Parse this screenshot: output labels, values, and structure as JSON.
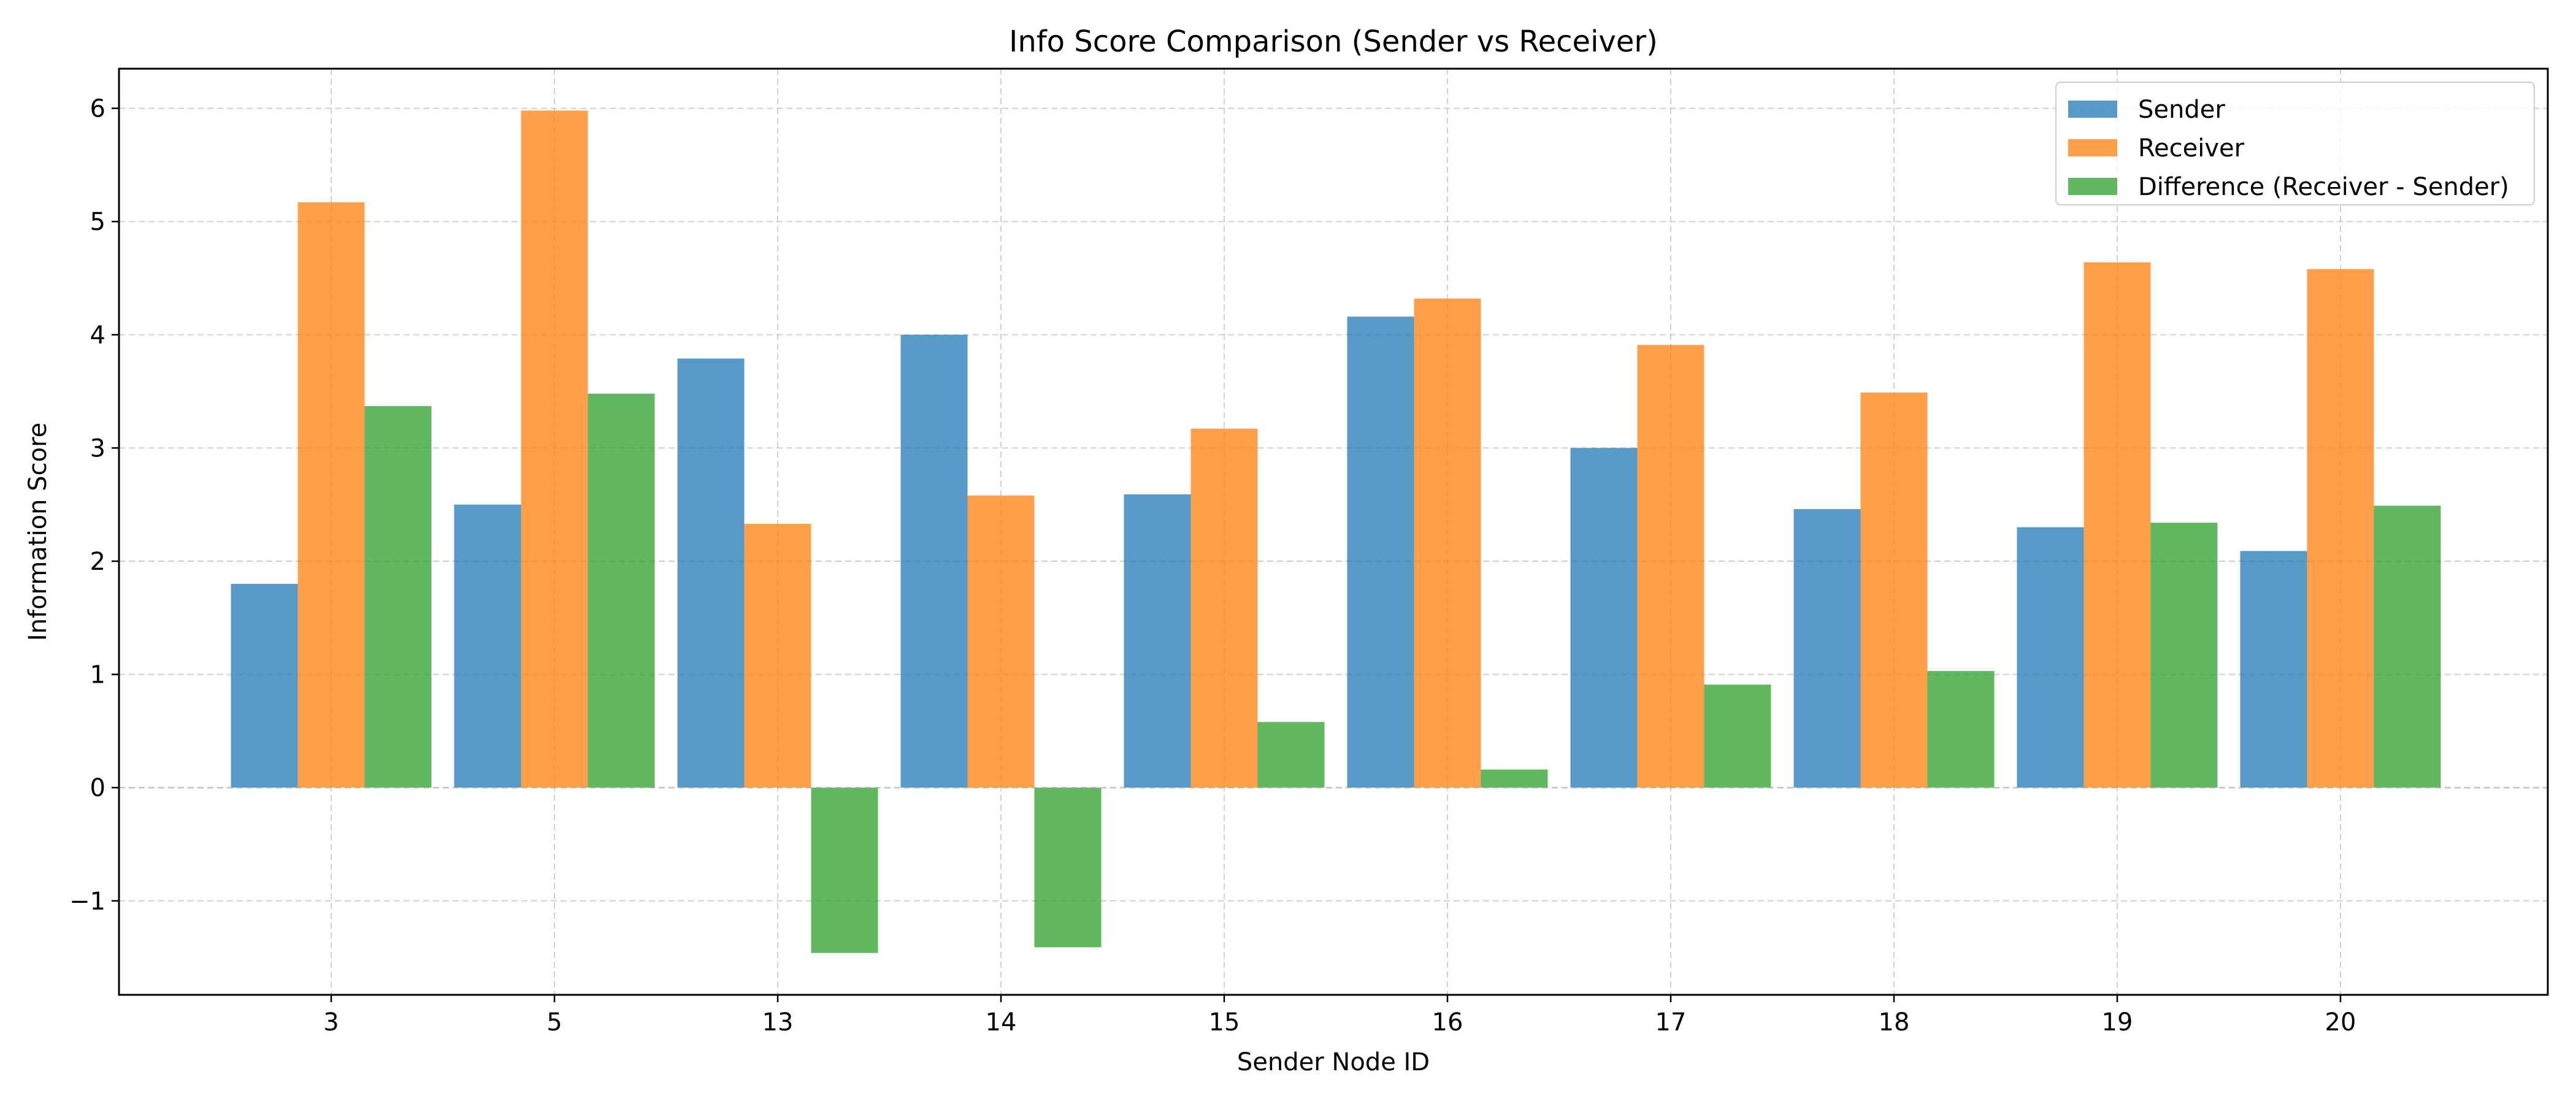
{
  "chart_data": {
    "type": "bar",
    "title": "Info Score Comparison (Sender vs Receiver)",
    "xlabel": "Sender Node ID",
    "ylabel": "Information Score",
    "categories": [
      "3",
      "5",
      "13",
      "14",
      "15",
      "16",
      "17",
      "18",
      "19",
      "20"
    ],
    "series": [
      {
        "name": "Sender",
        "color": "#1f77b4",
        "values": [
          1.8,
          2.5,
          3.79,
          4.0,
          2.59,
          4.16,
          3.0,
          2.46,
          2.3,
          2.09
        ]
      },
      {
        "name": "Receiver",
        "color": "#ff7f0e",
        "values": [
          5.17,
          5.98,
          2.33,
          2.58,
          3.17,
          4.32,
          3.91,
          3.49,
          4.64,
          4.58
        ]
      },
      {
        "name": "Difference (Receiver - Sender)",
        "color": "#2ca02c",
        "values": [
          3.37,
          3.48,
          -1.46,
          -1.41,
          0.58,
          0.16,
          0.91,
          1.03,
          2.34,
          2.49
        ]
      }
    ],
    "ylim": [
      -1.83,
      6.35
    ],
    "yticks": [
      -1,
      0,
      1,
      2,
      3,
      4,
      5,
      6
    ],
    "ytick_labels": [
      "−1",
      "0",
      "1",
      "2",
      "3",
      "4",
      "5",
      "6"
    ],
    "grid": true,
    "legend_position": "upper right",
    "bar_alpha": 0.75
  }
}
